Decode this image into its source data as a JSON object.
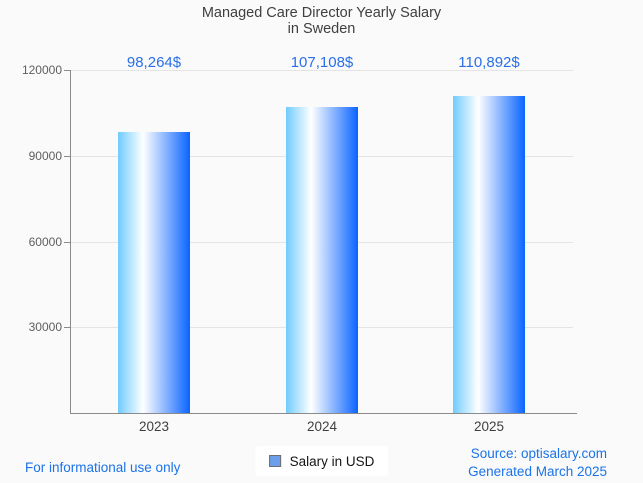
{
  "chart_data": {
    "type": "bar",
    "title": "Managed Care Director Yearly Salary in Sweden",
    "title_lines": [
      "Managed Care Director Yearly Salary",
      "in Sweden"
    ],
    "categories": [
      "2023",
      "2024",
      "2025"
    ],
    "values": [
      98264,
      107108,
      110892
    ],
    "value_labels": [
      "98,264$",
      "107,108$",
      "110,892$"
    ],
    "series": [
      {
        "name": "Salary in USD",
        "values": [
          98264,
          107108,
          110892
        ]
      }
    ],
    "xlabel": "",
    "ylabel": "",
    "ylim": [
      0,
      120000
    ],
    "yticks": [
      30000,
      60000,
      90000,
      120000
    ],
    "ytick_labels": [
      "30000",
      "60000",
      "90000",
      "120000"
    ],
    "grid": true,
    "legend_position": "bottom"
  },
  "legend": {
    "label": "Salary in USD",
    "marker_icon": "blue-square-icon",
    "marker_fill": "#6d9eeb",
    "marker_border": "#6e6e6e"
  },
  "footer": {
    "left": "For informational use only",
    "source": "Source: optisalary.com",
    "generated": "Generated March 2025"
  },
  "colors": {
    "background": "#fafafa",
    "title_text": "#3f3f3f",
    "value_label": "#2a6fe8",
    "footer_link": "#1a73e8",
    "axis_line": "#8b8b8b",
    "gridline": "#e4e4e4",
    "ytick_text": "#5f5f5f",
    "bar_gradient_left": "#70ccff",
    "bar_gradient_mid": "#ffffff",
    "bar_gradient_right": "#0a64ff"
  }
}
